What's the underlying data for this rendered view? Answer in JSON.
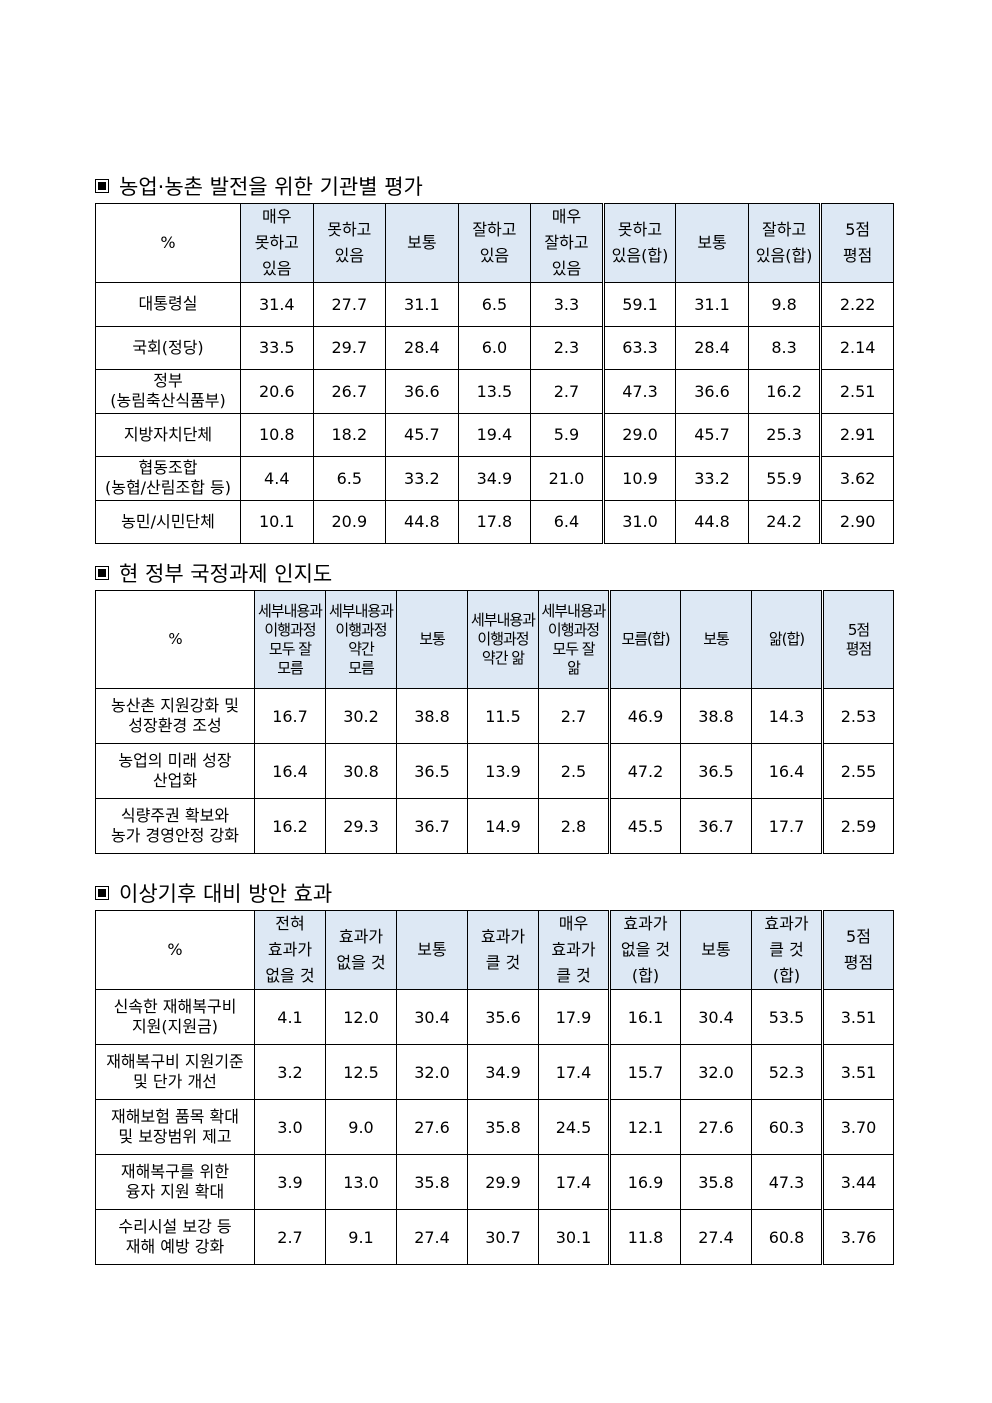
{
  "sections": [
    {
      "title": "농업·농촌 발전을 위한 기관별 평가",
      "headers": [
        "%",
        "매우\n못하고\n있음",
        "못하고\n있음",
        "보통",
        "잘하고\n있음",
        "매우\n잘하고\n있음",
        "못하고\n있음(합)",
        "보통",
        "잘하고\n있음(합)",
        "5점\n평점"
      ],
      "rows": [
        {
          "label": "대통령실",
          "values": [
            "31.4",
            "27.7",
            "31.1",
            "6.5",
            "3.3",
            "59.1",
            "31.1",
            "9.8",
            "2.22"
          ]
        },
        {
          "label": "국회(정당)",
          "values": [
            "33.5",
            "29.7",
            "28.4",
            "6.0",
            "2.3",
            "63.3",
            "28.4",
            "8.3",
            "2.14"
          ]
        },
        {
          "label": "정부\n(농림축산식품부)",
          "values": [
            "20.6",
            "26.7",
            "36.6",
            "13.5",
            "2.7",
            "47.3",
            "36.6",
            "16.2",
            "2.51"
          ]
        },
        {
          "label": "지방자치단체",
          "values": [
            "10.8",
            "18.2",
            "45.7",
            "19.4",
            "5.9",
            "29.0",
            "45.7",
            "25.3",
            "2.91"
          ]
        },
        {
          "label": "협동조합\n(농협/산림조합 등)",
          "values": [
            "4.4",
            "6.5",
            "33.2",
            "34.9",
            "21.0",
            "10.9",
            "33.2",
            "55.9",
            "3.62"
          ]
        },
        {
          "label": "농민/시민단체",
          "values": [
            "10.1",
            "20.9",
            "44.8",
            "17.8",
            "6.4",
            "31.0",
            "44.8",
            "24.2",
            "2.90"
          ]
        }
      ]
    },
    {
      "title": "현 정부 국정과제 인지도",
      "headers": [
        "%",
        "세부내용과\n이행과정\n모두 잘\n모름",
        "세부내용과\n이행과정\n약간\n모름",
        "보통",
        "세부내용과\n이행과정\n약간 앎",
        "세부내용과\n이행과정\n모두 잘\n앎",
        "모름(합)",
        "보통",
        "앎(합)",
        "5점\n평점"
      ],
      "rows": [
        {
          "label": "농산촌 지원강화 및\n성장환경 조성",
          "values": [
            "16.7",
            "30.2",
            "38.8",
            "11.5",
            "2.7",
            "46.9",
            "38.8",
            "14.3",
            "2.53"
          ]
        },
        {
          "label": "농업의 미래 성장\n산업화",
          "values": [
            "16.4",
            "30.8",
            "36.5",
            "13.9",
            "2.5",
            "47.2",
            "36.5",
            "16.4",
            "2.55"
          ]
        },
        {
          "label": "식량주권 확보와\n농가 경영안정 강화",
          "values": [
            "16.2",
            "29.3",
            "36.7",
            "14.9",
            "2.8",
            "45.5",
            "36.7",
            "17.7",
            "2.59"
          ]
        }
      ]
    },
    {
      "title": "이상기후 대비 방안 효과",
      "headers": [
        "%",
        "전혀\n효과가\n없을 것",
        "효과가\n없을 것",
        "보통",
        "효과가\n클 것",
        "매우\n효과가\n클 것",
        "효과가\n없을 것\n(합)",
        "보통",
        "효과가\n클 것\n(합)",
        "5점\n평점"
      ],
      "rows": [
        {
          "label": "신속한 재해복구비\n지원(지원금)",
          "values": [
            "4.1",
            "12.0",
            "30.4",
            "35.6",
            "17.9",
            "16.1",
            "30.4",
            "53.5",
            "3.51"
          ]
        },
        {
          "label": "재해복구비 지원기준\n및 단가 개선",
          "values": [
            "3.2",
            "12.5",
            "32.0",
            "34.9",
            "17.4",
            "15.7",
            "32.0",
            "52.3",
            "3.51"
          ]
        },
        {
          "label": "재해보험 품목 확대\n및 보장범위 제고",
          "values": [
            "3.0",
            "9.0",
            "27.6",
            "35.8",
            "24.5",
            "12.1",
            "27.6",
            "60.3",
            "3.70"
          ]
        },
        {
          "label": "재해복구를 위한\n융자 지원 확대",
          "values": [
            "3.9",
            "13.0",
            "35.8",
            "29.9",
            "17.4",
            "16.9",
            "35.8",
            "47.3",
            "3.44"
          ]
        },
        {
          "label": "수리시설 보강 등\n재해 예방 강화",
          "values": [
            "2.7",
            "9.1",
            "27.4",
            "30.7",
            "30.1",
            "11.8",
            "27.4",
            "60.8",
            "3.76"
          ]
        }
      ]
    }
  ]
}
